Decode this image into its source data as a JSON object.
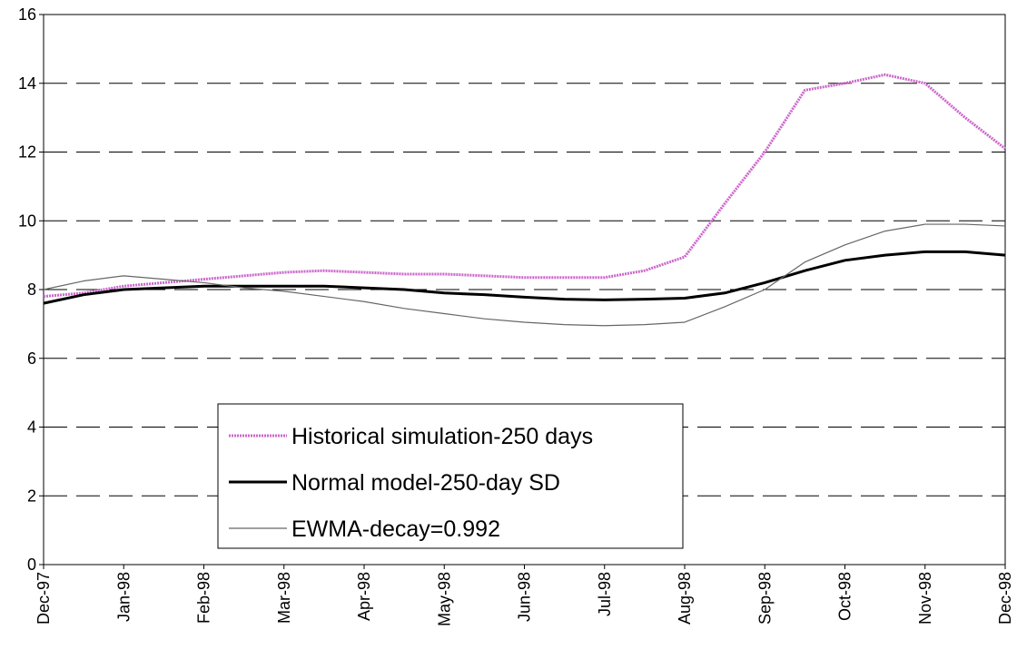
{
  "chart_data": {
    "type": "line",
    "categories": [
      "Dec-97",
      null,
      "Jan-98",
      null,
      "Feb-98",
      null,
      "Mar-98",
      null,
      "Apr-98",
      null,
      "May-98",
      null,
      "Jun-98",
      null,
      "Jul-98",
      null,
      "Aug-98",
      null,
      "Sep-98",
      null,
      "Oct-98",
      null,
      "Nov-98",
      null,
      "Dec-98"
    ],
    "series": [
      {
        "name": "Historical simulation-250 days",
        "color": "#cc66cc",
        "values": [
          7.8,
          7.9,
          8.1,
          8.2,
          8.3,
          8.4,
          8.5,
          8.55,
          8.5,
          8.45,
          8.45,
          8.4,
          8.35,
          8.35,
          8.35,
          8.55,
          8.95,
          10.5,
          12.0,
          13.8,
          14.0,
          14.25,
          14.0,
          13.0,
          12.1
        ]
      },
      {
        "name": "Normal model-250-day SD",
        "color": "#000000",
        "values": [
          7.6,
          7.85,
          8.0,
          8.05,
          8.1,
          8.1,
          8.1,
          8.1,
          8.05,
          8.0,
          7.9,
          7.85,
          7.78,
          7.72,
          7.7,
          7.72,
          7.75,
          7.9,
          8.2,
          8.55,
          8.85,
          9.0,
          9.1,
          9.1,
          9.0
        ]
      },
      {
        "name": "EWMA-decay=0.992",
        "color": "#666666",
        "values": [
          8.0,
          8.25,
          8.4,
          8.3,
          8.2,
          8.05,
          7.95,
          7.8,
          7.65,
          7.45,
          7.3,
          7.15,
          7.05,
          6.98,
          6.95,
          6.98,
          7.05,
          7.5,
          8.0,
          8.8,
          9.3,
          9.7,
          9.9,
          9.9,
          9.85
        ]
      }
    ],
    "ylim": [
      0,
      16
    ],
    "yticks": [
      0,
      2,
      4,
      6,
      8,
      10,
      12,
      14,
      16
    ],
    "grid": true
  }
}
